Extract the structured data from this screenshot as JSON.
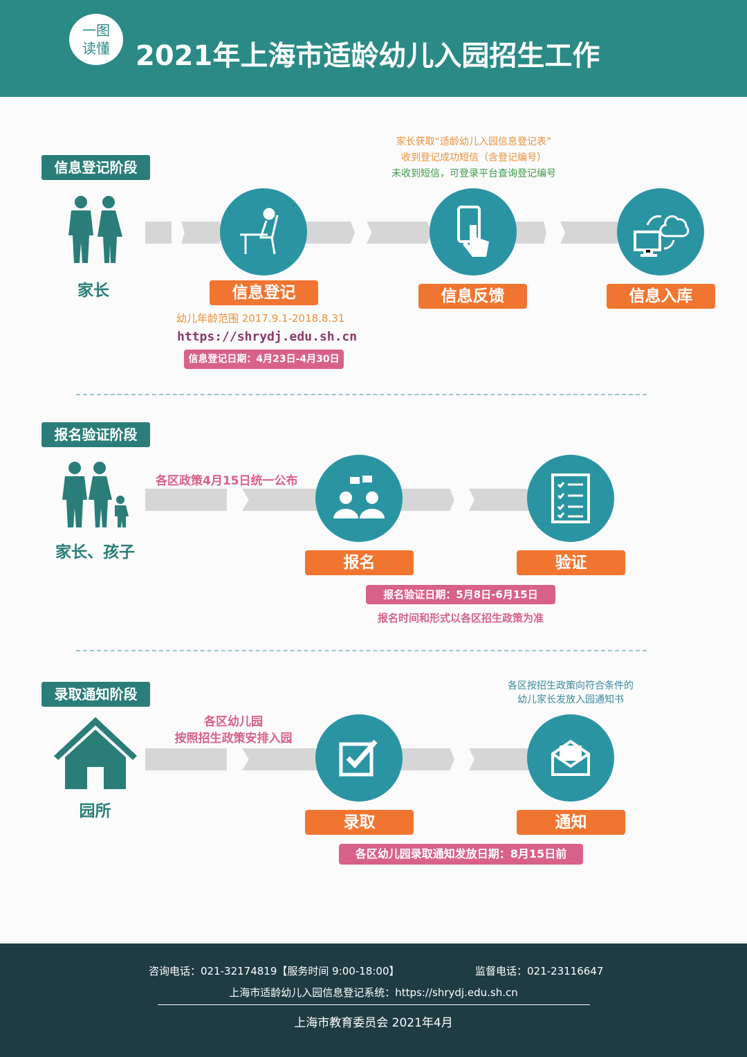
{
  "header": {
    "badge": "一图读懂",
    "badge_line1": "一图",
    "badge_line2": "读懂",
    "title": "2021年上海市适龄幼儿入园招生工作"
  },
  "colors": {
    "teal": "#2b8a85",
    "circle": "#2b94a3",
    "orange": "#f07530",
    "pink": "#d8618a",
    "footer": "#1f3c42"
  },
  "stage1": {
    "label": "信息登记阶段",
    "who": "家长",
    "notes": [
      "家长获取“适龄幼儿入园信息登记表”",
      "收到登记成功短信（含登记编号）",
      "未收到短信，可登录平台查询登记编号"
    ],
    "steps": [
      {
        "label": "信息登记",
        "icon": "computer-user-icon"
      },
      {
        "label": "信息反馈",
        "icon": "phone-tap-icon"
      },
      {
        "label": "信息入库",
        "icon": "cloud-sync-icon"
      }
    ],
    "age_range": "幼儿年龄范围 2017.9.1-2018.8.31",
    "url": "https://shrydj.edu.sh.cn",
    "date": "信息登记日期：4月23日-4月30日"
  },
  "stage2": {
    "label": "报名验证阶段",
    "who": "家长、孩子",
    "policy_note": "各区政策4月15日统一公布",
    "steps": [
      {
        "label": "报名",
        "icon": "people-chat-icon"
      },
      {
        "label": "验证",
        "icon": "checklist-icon"
      }
    ],
    "date": "报名验证日期：5月8日-6月15日",
    "note": "报名时间和形式以各区招生政策为准"
  },
  "stage3": {
    "label": "录取通知阶段",
    "who": "园所",
    "left_note": [
      "各区幼儿园",
      "按照招生政策安排入园"
    ],
    "right_note": [
      "各区按招生政策向符合条件的",
      "幼儿家长发放入园通知书"
    ],
    "steps": [
      {
        "label": "录取",
        "icon": "checkbox-icon"
      },
      {
        "label": "通知",
        "icon": "envelope-icon"
      }
    ],
    "date": "各区幼儿园录取通知发放日期：8月15日前"
  },
  "footer": {
    "hotline": "咨询电话：021-32174819【服务时间 9:00-18:00】",
    "supervision": "监督电话：021-23116647",
    "system": "上海市适龄幼儿入园信息登记系统：https://shrydj.edu.sh.cn",
    "issuer": "上海市教育委员会  2021年4月"
  }
}
